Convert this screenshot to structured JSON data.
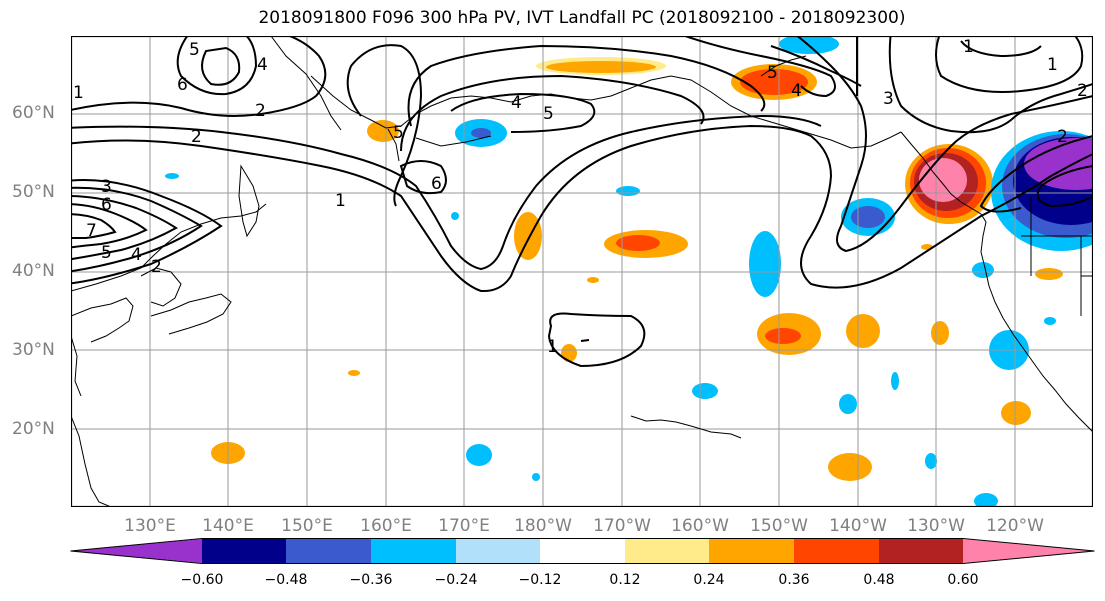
{
  "title": "2018091800 F096 300 hPa PV, IVT Landfall PC (2018092100 - 2018092300)",
  "lat_labels": [
    "60°N",
    "50°N",
    "40°N",
    "30°N",
    "20°N"
  ],
  "lon_labels": [
    "130°E",
    "140°E",
    "150°E",
    "160°E",
    "170°E",
    "180°W",
    "170°W",
    "160°W",
    "150°W",
    "140°W",
    "130°W",
    "120°W"
  ],
  "colorbar": {
    "tick_labels": [
      "−0.60",
      "−0.48",
      "−0.36",
      "−0.24",
      "−0.12",
      "0.12",
      "0.24",
      "0.36",
      "0.48",
      "0.60"
    ],
    "colors": [
      "#9932cc",
      "#00008b",
      "#3a5acd",
      "#00bfff",
      "#b0e0fa",
      "#ffffff",
      "#ffeb8a",
      "#ffa500",
      "#ff4500",
      "#b22222",
      "#ff82ab"
    ]
  },
  "pv_contour_labels": [
    "1",
    "2",
    "3",
    "4",
    "5",
    "6",
    "7"
  ]
}
